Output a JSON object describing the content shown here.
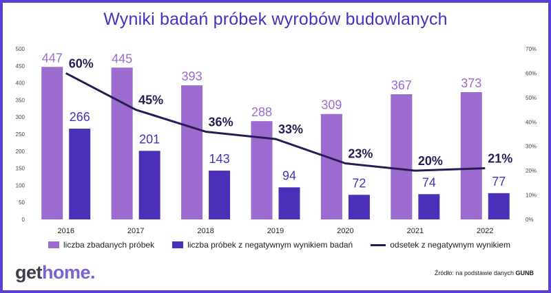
{
  "title": "Wyniki badań próbek wyrobów budowlanych",
  "colors": {
    "bar1": "#9b6bcf",
    "bar2": "#4b2fb8",
    "line": "#2a1b55",
    "frame": "#5b3fd1"
  },
  "chart_data": {
    "type": "bar",
    "categories": [
      "2016",
      "2017",
      "2018",
      "2019",
      "2020",
      "2021",
      "2022"
    ],
    "series": [
      {
        "name": "liczba zbadanych próbek",
        "type": "bar",
        "axis": "left",
        "values": [
          447,
          445,
          393,
          288,
          309,
          367,
          373
        ],
        "labels": [
          "447",
          "445",
          "393",
          "288",
          "309",
          "367",
          "373"
        ]
      },
      {
        "name": "liczba próbek z negatywnym wynikiem badań",
        "type": "bar",
        "axis": "left",
        "values": [
          266,
          201,
          143,
          94,
          72,
          74,
          77
        ],
        "labels": [
          "266",
          "201",
          "143",
          "94",
          "72",
          "74",
          "77"
        ]
      },
      {
        "name": "odsetek z negatywnym wynikiem",
        "type": "line",
        "axis": "right",
        "values": [
          60,
          45,
          36,
          33,
          23,
          20,
          21
        ],
        "labels": [
          "60%",
          "45%",
          "36%",
          "33%",
          "23%",
          "20%",
          "21%"
        ]
      }
    ],
    "y_left": {
      "range": [
        0,
        500
      ],
      "ticks": [
        "0",
        "50",
        "100",
        "150",
        "200",
        "250",
        "300",
        "350",
        "400",
        "450",
        "500"
      ]
    },
    "y_right": {
      "range": [
        0,
        70
      ],
      "ticks": [
        "0%",
        "10%",
        "20%",
        "30%",
        "40%",
        "50%",
        "60%",
        "70%"
      ]
    },
    "grid": false,
    "legend_position": "bottom"
  },
  "legend": [
    "liczba zbadanych próbek",
    "liczba próbek z negatywnym wynikiem badań",
    "odsetek z negatywnym wynikiem"
  ],
  "logo": {
    "part1": "get",
    "part2": "home."
  },
  "source": {
    "prefix": "Źródło: na podstawie danych ",
    "org": "GUNB"
  }
}
